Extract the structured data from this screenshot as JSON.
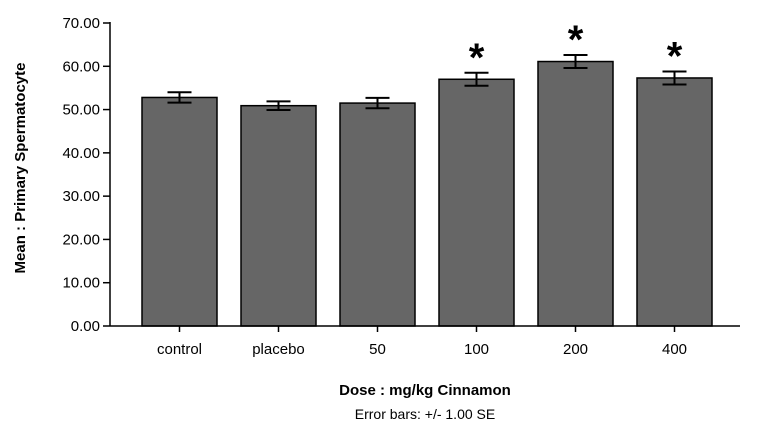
{
  "chart_data": {
    "type": "bar",
    "title": "",
    "xlabel": "Dose : mg/kg Cinnamon",
    "ylabel": "Mean : Primary Spermatocyte",
    "footnote": "Error bars: +/-  1.00 SE",
    "ylim": [
      0,
      70
    ],
    "y_ticks": [
      "0.00",
      "10.00",
      "20.00",
      "30.00",
      "40.00",
      "50.00",
      "60.00",
      "70.00"
    ],
    "categories": [
      "control",
      "placebo",
      "50",
      "100",
      "200",
      "400"
    ],
    "values": [
      52.8,
      50.9,
      51.5,
      57.0,
      61.1,
      57.3
    ],
    "errors": [
      1.2,
      1.0,
      1.2,
      1.5,
      1.5,
      1.5
    ],
    "significant": [
      false,
      false,
      false,
      true,
      true,
      true
    ],
    "significance_marker": "*",
    "bar_color": "#666666",
    "grid": false
  }
}
